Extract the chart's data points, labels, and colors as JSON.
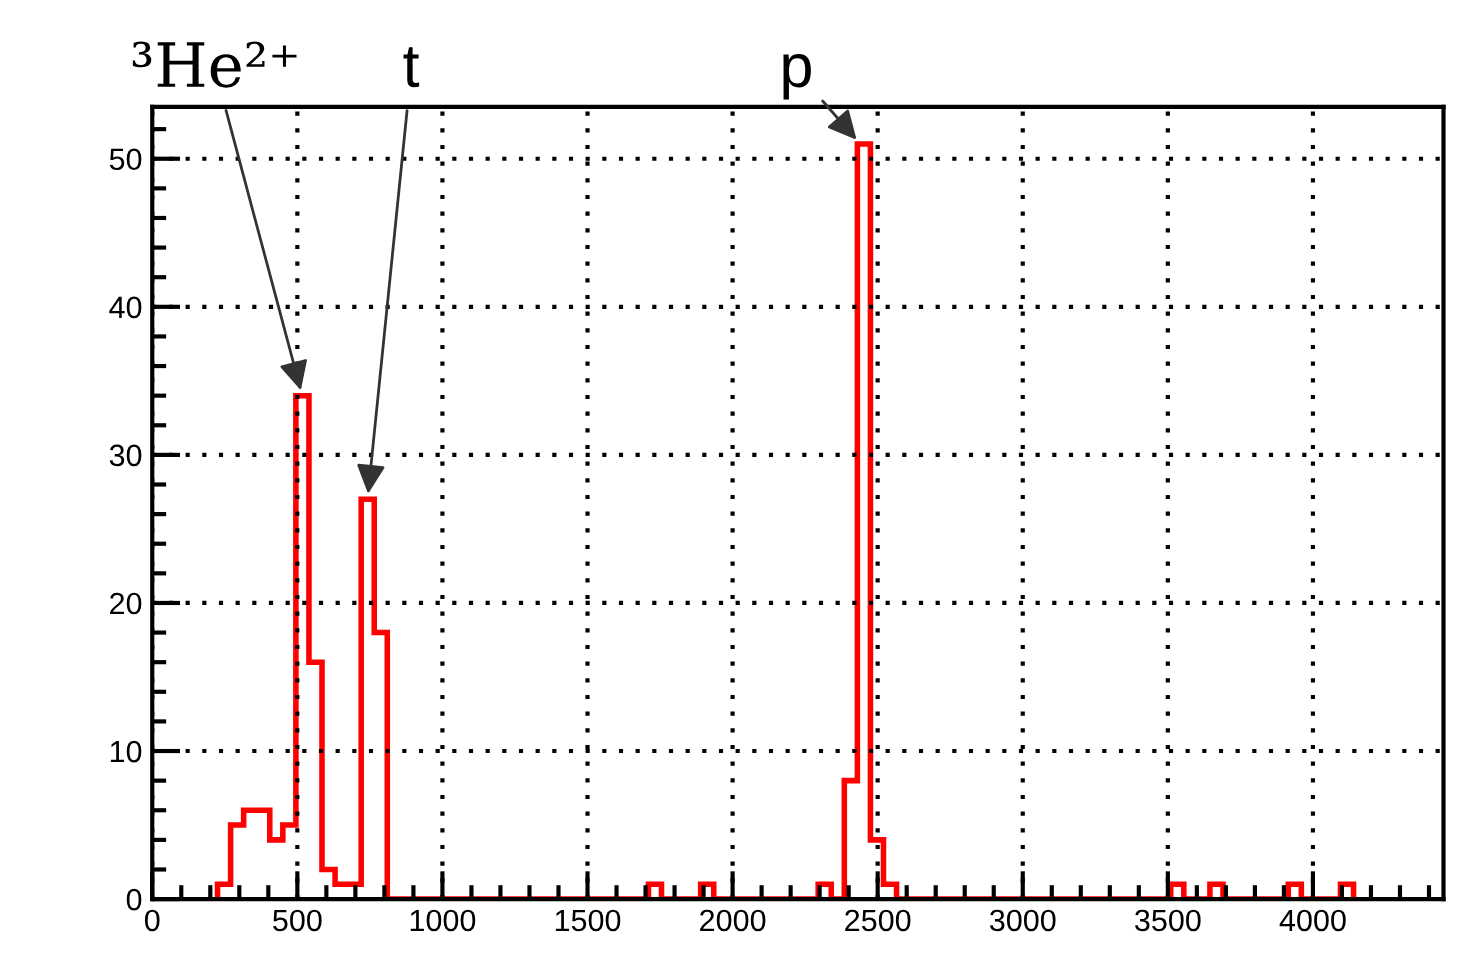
{
  "chart_data": {
    "type": "histogram",
    "bins": [
      225,
      270,
      315,
      360,
      405,
      450,
      495,
      540,
      585,
      630,
      675,
      720,
      765,
      810,
      855,
      900,
      945,
      990,
      1035,
      1080,
      1125,
      1170,
      1215,
      1260,
      1305,
      1350,
      1395,
      1440,
      1485,
      1530,
      1575,
      1620,
      1665,
      1710,
      1755,
      1800,
      1845,
      1890,
      1935,
      1980,
      2025,
      2070,
      2115,
      2160,
      2205,
      2250,
      2295,
      2340,
      2385,
      2430,
      2475,
      2520,
      2565,
      2610,
      2655,
      2700,
      2745,
      2790,
      2835,
      2880,
      2925,
      2970,
      3015,
      3060,
      3105,
      3150,
      3195,
      3240,
      3285,
      3330,
      3375,
      3420,
      3465,
      3510,
      3555,
      3600,
      3645,
      3690,
      3735,
      3780,
      3825,
      3870,
      3915,
      3960,
      4005,
      4050,
      4095,
      4140
    ],
    "values": [
      1,
      5,
      6,
      6,
      4,
      5,
      34,
      16,
      2,
      1,
      1,
      27,
      18,
      0,
      0,
      0,
      0,
      0,
      0,
      0,
      0,
      0,
      0,
      0,
      0,
      0,
      0,
      0,
      0,
      0,
      0,
      0,
      0,
      1,
      0,
      0,
      0,
      1,
      0,
      0,
      0,
      0,
      0,
      0,
      0,
      0,
      1,
      0,
      8,
      51,
      4,
      1,
      0,
      0,
      0,
      0,
      0,
      0,
      0,
      0,
      0,
      0,
      0,
      0,
      0,
      0,
      0,
      0,
      0,
      0,
      0,
      0,
      0,
      1,
      0,
      0,
      1,
      0,
      0,
      0,
      0,
      0,
      1,
      0,
      0,
      0,
      1
    ],
    "color": "#ff0000",
    "xlim": [
      0,
      4450
    ],
    "ylim": [
      0,
      53.5
    ],
    "xticks": [
      0,
      500,
      1000,
      1500,
      2000,
      2500,
      3000,
      3500,
      4000
    ],
    "yticks": [
      0,
      10,
      20,
      30,
      40,
      50
    ],
    "grid": true,
    "annotations": [
      {
        "text": "³He²⁺",
        "x": 517,
        "y": 34
      },
      {
        "text": "t",
        "x": 742,
        "y": 27
      },
      {
        "text": "p",
        "x": 2440,
        "y": 51
      }
    ]
  }
}
